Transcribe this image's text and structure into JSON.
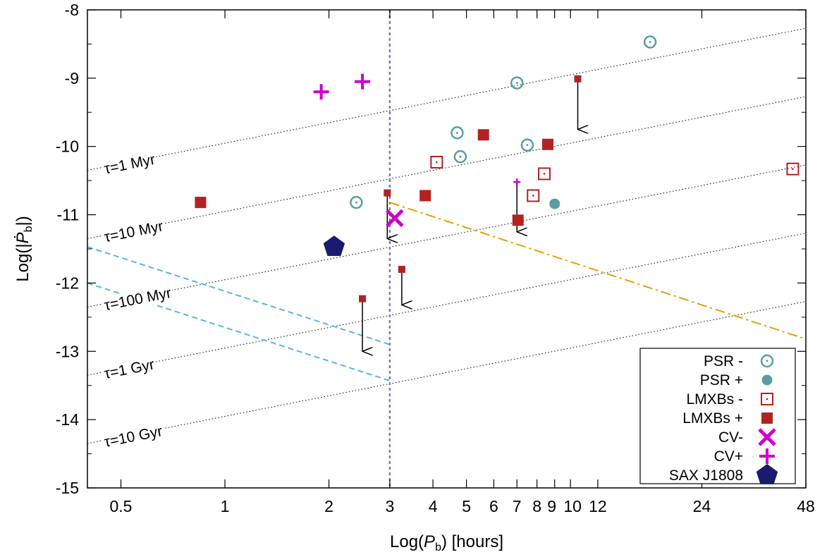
{
  "chart_data": {
    "type": "scatter",
    "x_scale": "log",
    "xlabel": "Log(P_b) [hours]",
    "ylabel": "Log(|Ṗ_b|)",
    "xlim": [
      0.4,
      48
    ],
    "ylim": [
      -15,
      -8
    ],
    "x_ticks": [
      {
        "value": 0.5,
        "label": "0.5"
      },
      {
        "value": 1,
        "label": "1"
      },
      {
        "value": 2,
        "label": "2"
      },
      {
        "value": 3,
        "label": "3"
      },
      {
        "value": 4,
        "label": "4"
      },
      {
        "value": 5,
        "label": "5"
      },
      {
        "value": 6,
        "label": "6"
      },
      {
        "value": 7,
        "label": "7"
      },
      {
        "value": 8,
        "label": "8"
      },
      {
        "value": 9,
        "label": "9"
      },
      {
        "value": 10,
        "label": "10"
      },
      {
        "value": 12,
        "label": "12"
      },
      {
        "value": 24,
        "label": "24"
      },
      {
        "value": 48,
        "label": "48"
      }
    ],
    "y_ticks": [
      {
        "value": -8,
        "label": "-8"
      },
      {
        "value": -9,
        "label": "-9"
      },
      {
        "value": -10,
        "label": "-10"
      },
      {
        "value": -11,
        "label": "-11"
      },
      {
        "value": -12,
        "label": "-12"
      },
      {
        "value": -13,
        "label": "-13"
      },
      {
        "value": -14,
        "label": "-14"
      },
      {
        "value": -15,
        "label": "-15"
      }
    ],
    "tau_lines": [
      {
        "label": "τ=1 Myr",
        "y_at_xmin": -10.35,
        "y_at_xmax": -8.27,
        "label_x": 0.43
      },
      {
        "label": "τ=10 Myr",
        "y_at_xmin": -11.35,
        "y_at_xmax": -9.27,
        "label_x": 0.43
      },
      {
        "label": "τ=100 Myr",
        "y_at_xmin": -12.35,
        "y_at_xmax": -10.27,
        "label_x": 0.43
      },
      {
        "label": "τ=1 Gyr",
        "y_at_xmin": -13.35,
        "y_at_xmax": -11.27,
        "label_x": 0.43
      },
      {
        "label": "τ=10 Gyr",
        "y_at_xmin": -14.35,
        "y_at_xmax": -12.27,
        "label_x": 0.43
      }
    ],
    "vertical_line_x": 3,
    "orange_line": {
      "x": [
        3,
        48
      ],
      "y": [
        -10.82,
        -12.82
      ]
    },
    "blue_dashed_lines": [
      {
        "x": [
          0.4,
          3
        ],
        "y": [
          -11.47,
          -12.9
        ]
      },
      {
        "x": [
          0.4,
          3
        ],
        "y": [
          -12.0,
          -13.43
        ]
      }
    ],
    "series": [
      {
        "name": "PSR -",
        "marker": "circle-dot",
        "color": "#5a9ea2",
        "points": [
          {
            "x": 17,
            "y": -8.47
          },
          {
            "x": 7.0,
            "y": -9.07
          },
          {
            "x": 4.7,
            "y": -9.8
          },
          {
            "x": 4.8,
            "y": -10.15
          },
          {
            "x": 7.5,
            "y": -9.98
          },
          {
            "x": 2.4,
            "y": -10.82
          }
        ]
      },
      {
        "name": "PSR +",
        "marker": "circle-filled",
        "color": "#5a9ea2",
        "points": [
          {
            "x": 9.0,
            "y": -10.84
          }
        ]
      },
      {
        "name": "LMXBs -",
        "marker": "square-dot",
        "color": "#b22222",
        "points": [
          {
            "x": 4.1,
            "y": -10.23
          },
          {
            "x": 8.4,
            "y": -10.4
          },
          {
            "x": 7.8,
            "y": -10.72
          },
          {
            "x": 44,
            "y": -10.33
          }
        ]
      },
      {
        "name": "LMXBs +",
        "marker": "square-filled",
        "color": "#b22222",
        "points": [
          {
            "x": 0.85,
            "y": -10.82
          },
          {
            "x": 5.6,
            "y": -9.83
          },
          {
            "x": 8.6,
            "y": -9.97
          },
          {
            "x": 3.8,
            "y": -10.72
          },
          {
            "x": 7.05,
            "y": -11.08
          }
        ]
      },
      {
        "name": "CV-",
        "marker": "x",
        "color": "#cc00cc",
        "points": [
          {
            "x": 3.1,
            "y": -11.05
          }
        ]
      },
      {
        "name": "CV+",
        "marker": "plus",
        "color": "#cc00cc",
        "points": [
          {
            "x": 1.9,
            "y": -9.2
          },
          {
            "x": 2.5,
            "y": -9.05
          }
        ]
      },
      {
        "name": "SAX J1808",
        "marker": "pentagon",
        "color": "#1a1a6e",
        "points": [
          {
            "x": 2.07,
            "y": -11.47
          }
        ]
      }
    ],
    "upper_limit_arrows": [
      {
        "x": 10.5,
        "y_from": -9.01,
        "y_to": -9.75,
        "marker": "square-small",
        "color": "#b22222"
      },
      {
        "x": 2.95,
        "y_from": -10.68,
        "y_to": -11.35,
        "marker": "square-small",
        "color": "#b22222"
      },
      {
        "x": 3.25,
        "y_from": -11.8,
        "y_to": -12.32,
        "marker": "square-small",
        "color": "#b22222"
      },
      {
        "x": 2.5,
        "y_from": -12.23,
        "y_to": -13.0,
        "marker": "square-small",
        "color": "#b22222"
      },
      {
        "x": 7.0,
        "y_from": -10.52,
        "y_to": -11.25,
        "marker": "plus-small",
        "color": "#cc00cc"
      }
    ],
    "legend": {
      "placement": "bottom-right",
      "entries": [
        "PSR -",
        "PSR +",
        "LMXBs -",
        "LMXBs +",
        "CV-",
        "CV+",
        "SAX J1808"
      ]
    },
    "grid": false
  }
}
